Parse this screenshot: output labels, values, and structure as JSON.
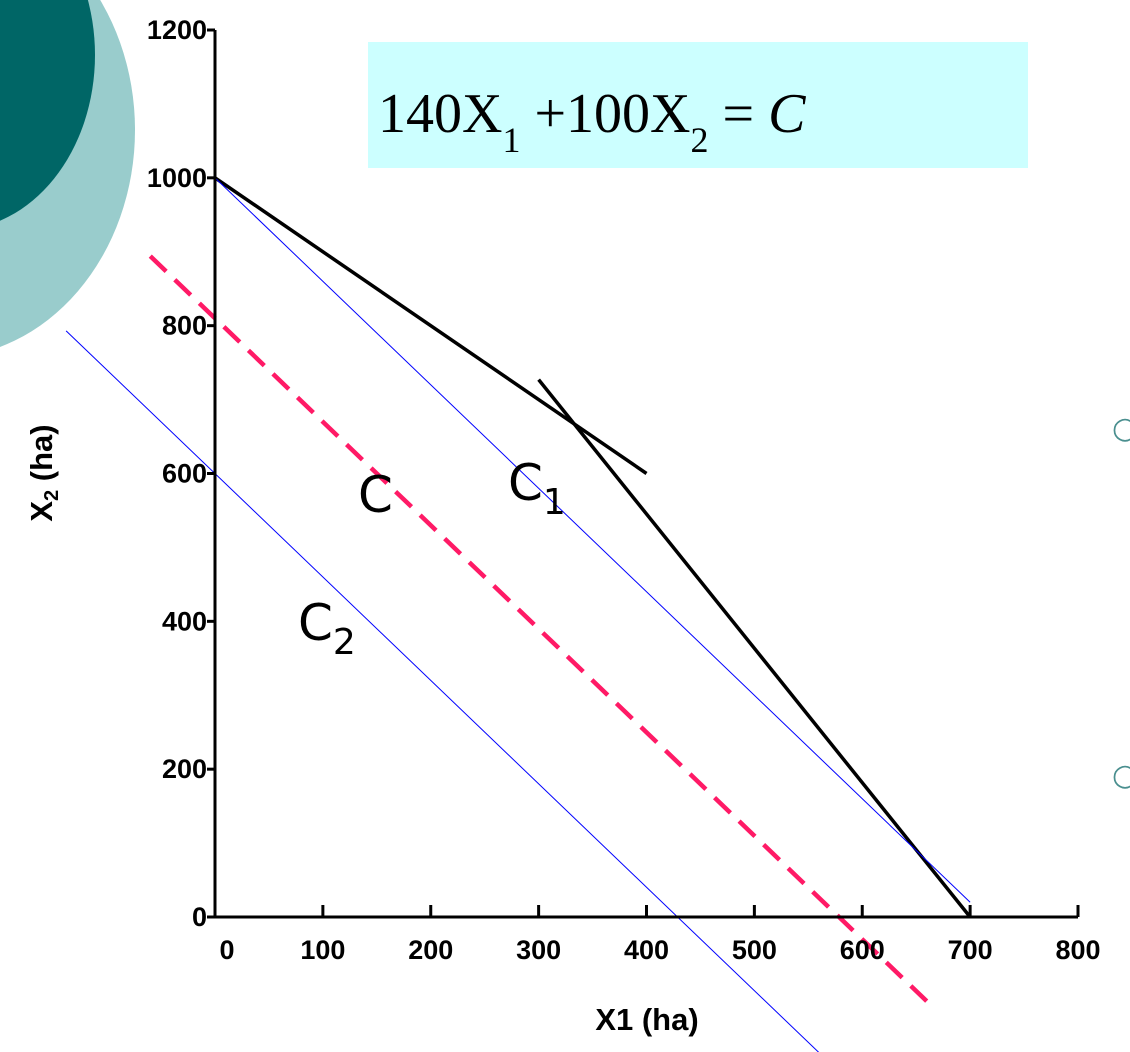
{
  "chart_data": {
    "type": "line",
    "xlim": [
      0,
      800
    ],
    "ylim": [
      0,
      1200
    ],
    "xticks": [
      0,
      100,
      200,
      300,
      400,
      500,
      600,
      700,
      800
    ],
    "yticks": [
      0,
      200,
      400,
      600,
      800,
      1000,
      1200
    ],
    "x_label": "X1 (ha)",
    "y_label": [
      "X",
      "2",
      " (ha)"
    ],
    "equation": [
      "140X",
      "1",
      " +100X",
      "2",
      " = ",
      "C"
    ],
    "annotations": [
      {
        "text": "C"
      },
      {
        "text": "C",
        "sub": "1"
      },
      {
        "text": "C",
        "sub": "2"
      }
    ],
    "series": [
      {
        "color": "#000000",
        "width": 3.5,
        "x": [
          0,
          400
        ],
        "values": [
          1000,
          600
        ]
      },
      {
        "color": "#000000",
        "width": 3.5,
        "x": [
          300,
          700
        ],
        "values": [
          727,
          0
        ]
      },
      {
        "color": "#0000ff",
        "width": 1,
        "x": [
          0,
          700
        ],
        "values": [
          1000,
          20
        ]
      },
      {
        "color": "#0000ff",
        "width": 1,
        "x": [
          -138,
          561
        ],
        "values": [
          793,
          -185
        ]
      },
      {
        "color": "#ff1a66",
        "width": 4.5,
        "dashed": true,
        "x": [
          -60,
          667
        ],
        "values": [
          894,
          -124
        ]
      }
    ]
  }
}
